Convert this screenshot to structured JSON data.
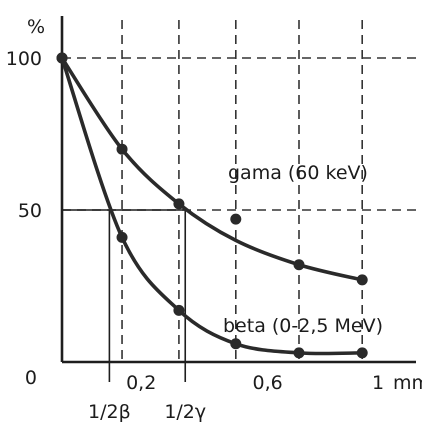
{
  "chart_data": {
    "type": "line",
    "x_unit": "mm",
    "y_unit": "%",
    "xlim": [
      0,
      1
    ],
    "ylim": [
      0,
      100
    ],
    "x_ticks": [
      {
        "value": 0.2,
        "label": "0,2"
      },
      {
        "value": 0.6,
        "label": "0,6"
      },
      {
        "value": 1,
        "label": "1"
      }
    ],
    "y_ticks": [
      {
        "value": 0,
        "label": "0"
      },
      {
        "value": 50,
        "label": "50"
      },
      {
        "value": 100,
        "label": "100"
      }
    ],
    "grid": "dashed",
    "half_value_markers": [
      {
        "label": "1/2β",
        "value": 0.15
      },
      {
        "label": "1/2γ",
        "value": 0.39
      }
    ],
    "series": [
      {
        "name": "gama (60 keV)",
        "color": "#2a2a2a",
        "x": [
          0,
          0.19,
          0.37,
          0.55,
          0.75,
          0.95
        ],
        "y": [
          100,
          70,
          52,
          47,
          32,
          27
        ]
      },
      {
        "name": "beta (0-2,5 MeV)",
        "color": "#2a2a2a",
        "x": [
          0,
          0.19,
          0.37,
          0.55,
          0.75,
          0.95
        ],
        "y": [
          100,
          41,
          17,
          6,
          3,
          3
        ]
      }
    ]
  }
}
